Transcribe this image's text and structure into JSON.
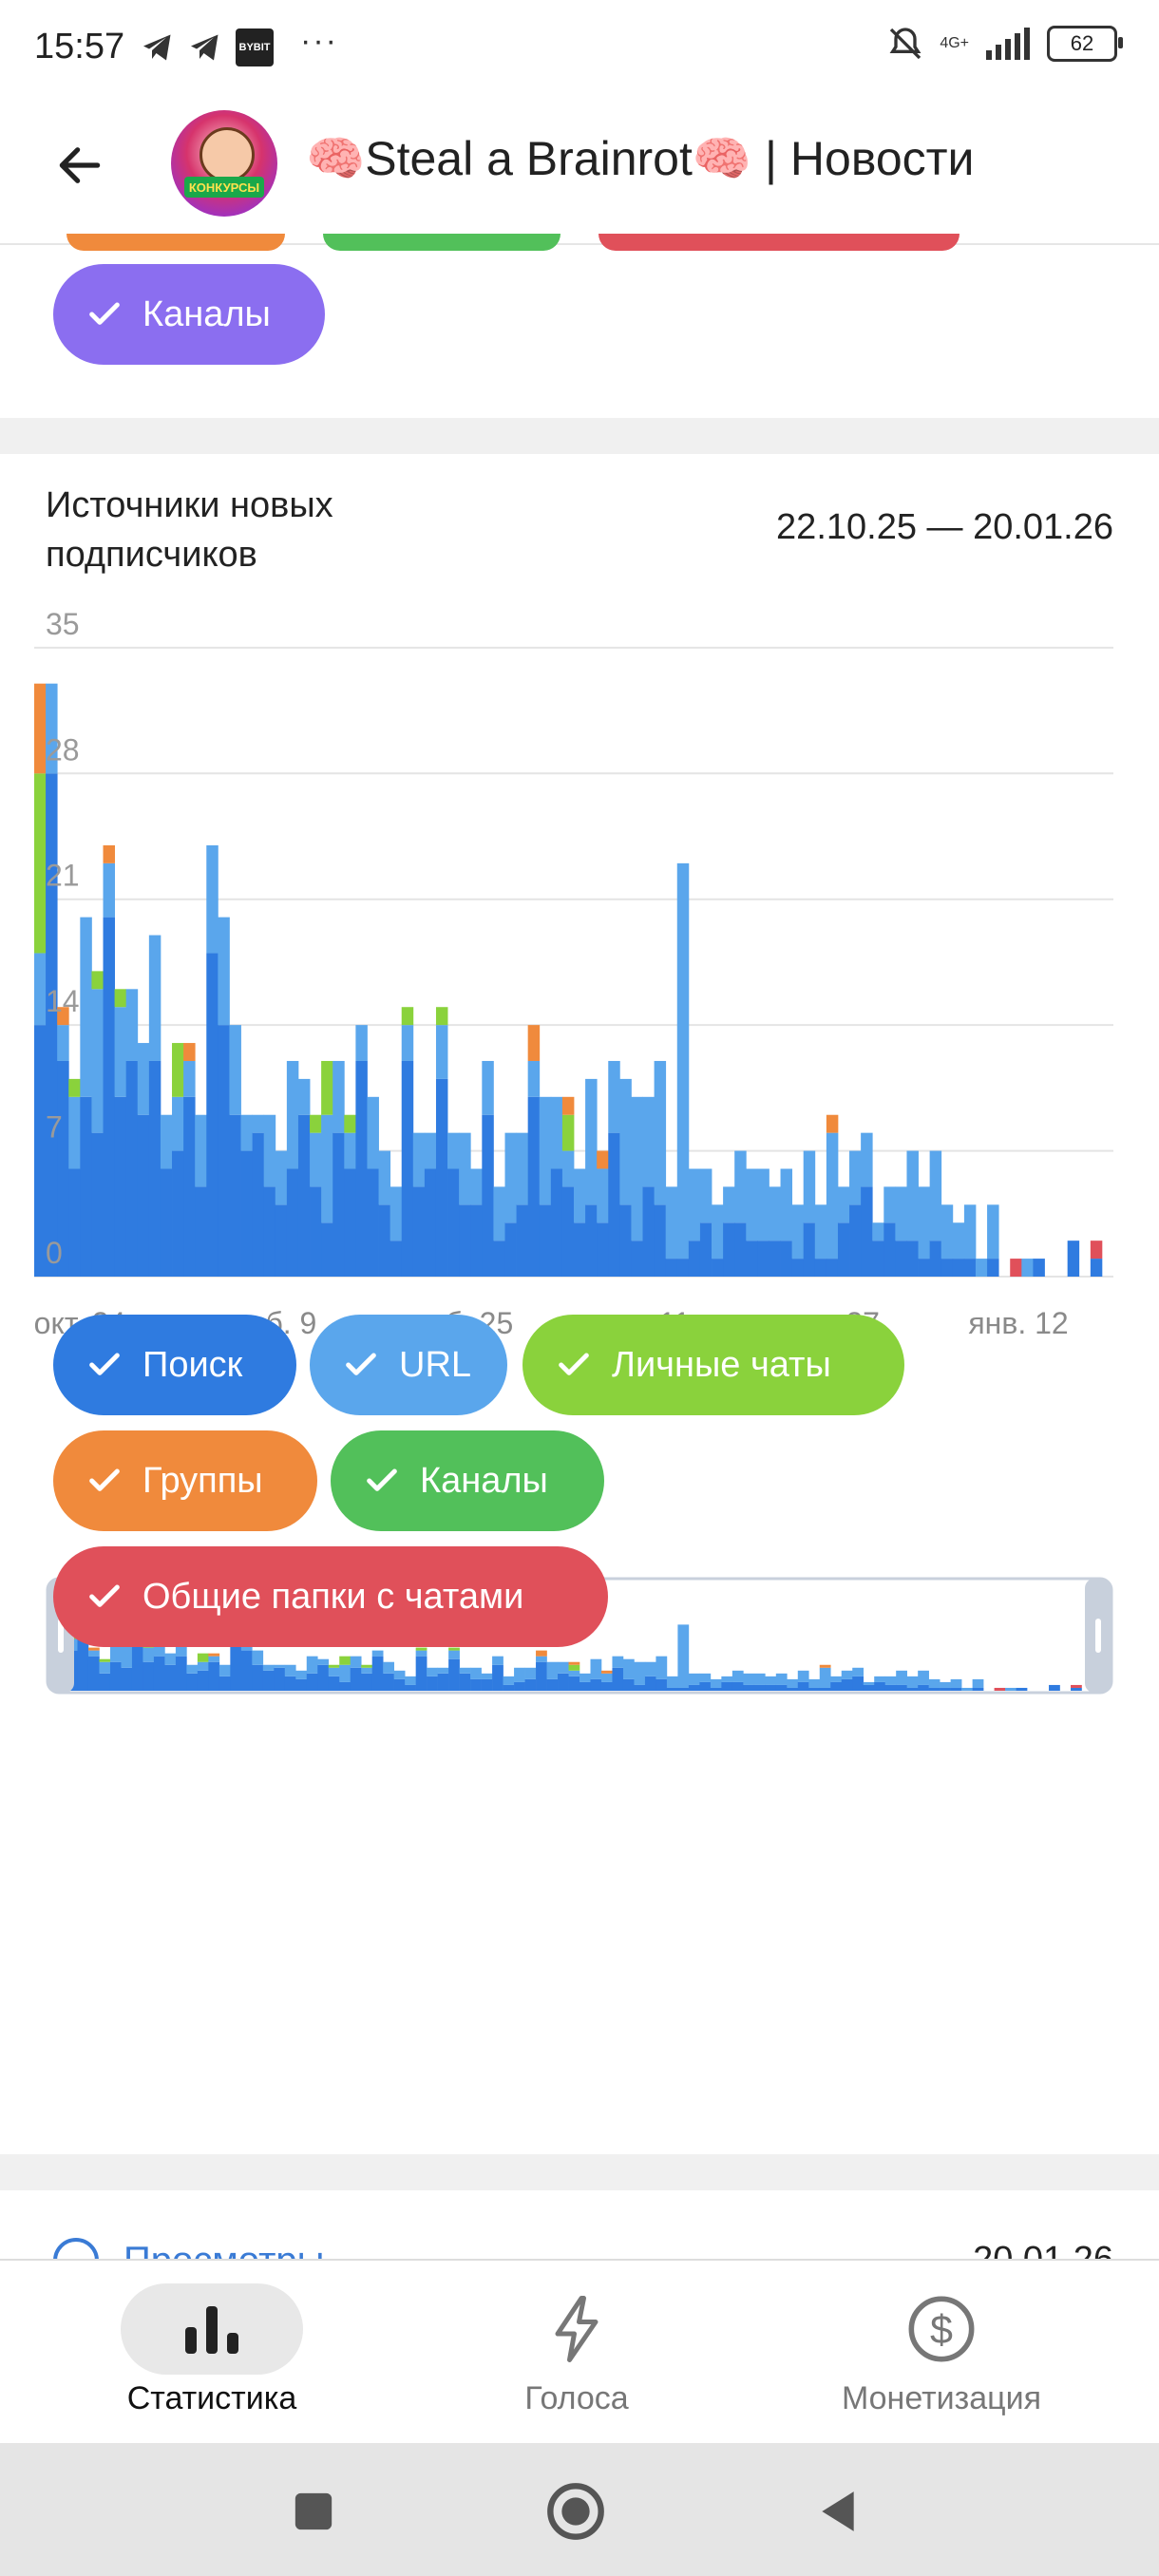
{
  "status_bar": {
    "time": "15:57",
    "network": "4G+",
    "battery": "62"
  },
  "header": {
    "title": "🧠Steal a Brainrot🧠 | Новости",
    "avatar_badge": "КОНКУРСЫ"
  },
  "top_filters": {
    "chips": [
      {
        "label": "Каналы",
        "color": "#8b6ef0"
      }
    ]
  },
  "chart_section": {
    "title": "Источники новых подписчиков",
    "range": "22.10.25 — 20.01.26"
  },
  "chart_data": {
    "type": "bar",
    "stacked": true,
    "title": "Источники новых подписчиков",
    "y_ticks": [
      "0",
      "7",
      "14",
      "21",
      "28",
      "35"
    ],
    "ylim": [
      0,
      37
    ],
    "x_ticks": [
      "окт. 24",
      "нояб. 9",
      "нояб. 25",
      "дек. 11",
      "дек. 27",
      "янв. 12"
    ],
    "grid": true,
    "series": [
      {
        "name": "Поиск",
        "color": "#2f7be0",
        "values": [
          14,
          28,
          12,
          6,
          10,
          8,
          20,
          10,
          12,
          9,
          12,
          6,
          7,
          10,
          5,
          18,
          14,
          9,
          7,
          8,
          5,
          4,
          6,
          9,
          5,
          3,
          8,
          6,
          12,
          6,
          4,
          2,
          12,
          5,
          6,
          11,
          6,
          4,
          4,
          9,
          2,
          3,
          4,
          10,
          4,
          6,
          5,
          3,
          4,
          3,
          8,
          4,
          2,
          5,
          4,
          1,
          1,
          2,
          3,
          1,
          3,
          3,
          2,
          2,
          2,
          2,
          1,
          3,
          1,
          1,
          3,
          4,
          5,
          2,
          3,
          2,
          2,
          1,
          2,
          1,
          1,
          1,
          0,
          1,
          0,
          0,
          0,
          1,
          0,
          0,
          2,
          0,
          1,
          0
        ]
      },
      {
        "name": "URL",
        "color": "#5aa6ec",
        "values": [
          4,
          5,
          2,
          4,
          10,
          8,
          3,
          5,
          4,
          4,
          7,
          3,
          3,
          2,
          4,
          6,
          6,
          5,
          2,
          1,
          4,
          3,
          6,
          2,
          3,
          6,
          4,
          2,
          2,
          4,
          3,
          3,
          2,
          3,
          2,
          3,
          2,
          4,
          2,
          3,
          3,
          5,
          4,
          2,
          6,
          4,
          2,
          3,
          7,
          3,
          4,
          7,
          8,
          5,
          8,
          4,
          22,
          4,
          3,
          3,
          2,
          4,
          4,
          4,
          3,
          4,
          3,
          4,
          3,
          7,
          2,
          3,
          3,
          1,
          2,
          3,
          5,
          4,
          5,
          3,
          2,
          3,
          1,
          3,
          0,
          0,
          1,
          0,
          0,
          0,
          0,
          0,
          0,
          0
        ]
      },
      {
        "name": "Личные чаты",
        "color": "#8ad23c",
        "values": [
          10,
          0,
          0,
          1,
          0,
          1,
          0,
          1,
          0,
          0,
          0,
          0,
          3,
          0,
          0,
          0,
          0,
          0,
          0,
          0,
          0,
          0,
          0,
          0,
          1,
          3,
          0,
          1,
          0,
          0,
          0,
          0,
          1,
          0,
          0,
          1,
          0,
          0,
          0,
          0,
          0,
          0,
          0,
          0,
          0,
          0,
          2,
          0,
          0,
          0,
          0,
          0,
          0,
          0,
          0,
          0,
          0,
          0,
          0,
          0,
          0,
          0,
          0,
          0,
          0,
          0,
          0,
          0,
          0,
          0,
          0,
          0,
          0,
          0,
          0,
          0,
          0,
          0,
          0,
          0,
          0,
          0,
          0,
          0,
          0,
          0,
          0,
          0,
          0,
          0,
          0,
          0,
          0,
          0
        ]
      },
      {
        "name": "Группы",
        "color": "#f08a3c",
        "values": [
          5,
          0,
          1,
          0,
          0,
          0,
          1,
          0,
          0,
          0,
          0,
          0,
          0,
          1,
          0,
          0,
          0,
          0,
          0,
          0,
          0,
          0,
          0,
          0,
          0,
          0,
          0,
          0,
          0,
          0,
          0,
          0,
          0,
          0,
          0,
          0,
          0,
          0,
          0,
          0,
          0,
          0,
          0,
          2,
          0,
          0,
          1,
          0,
          0,
          1,
          0,
          0,
          0,
          0,
          0,
          0,
          0,
          0,
          0,
          0,
          0,
          0,
          0,
          0,
          0,
          0,
          0,
          0,
          0,
          1,
          0,
          0,
          0,
          0,
          0,
          0,
          0,
          0,
          0,
          0,
          0,
          0,
          0,
          0,
          0,
          0,
          0,
          0,
          0,
          0,
          0,
          0,
          0,
          0
        ]
      },
      {
        "name": "Каналы",
        "color": "#52c05a",
        "values": [
          0,
          0,
          0,
          0,
          0,
          0,
          0,
          0,
          0,
          0,
          0,
          0,
          0,
          0,
          0,
          0,
          0,
          0,
          0,
          0,
          0,
          0,
          0,
          0,
          0,
          0,
          0,
          0,
          0,
          0,
          0,
          0,
          0,
          0,
          0,
          0,
          0,
          0,
          0,
          0,
          0,
          0,
          0,
          0,
          0,
          0,
          0,
          0,
          0,
          0,
          0,
          0,
          0,
          0,
          0,
          0,
          0,
          0,
          0,
          0,
          0,
          0,
          0,
          0,
          0,
          0,
          0,
          0,
          0,
          0,
          0,
          0,
          0,
          0,
          0,
          0,
          0,
          0,
          0,
          0,
          0,
          0,
          0,
          0,
          0,
          0,
          0,
          0,
          0,
          0,
          0,
          0,
          0,
          0
        ]
      },
      {
        "name": "Общие папки с чатами",
        "color": "#e0505a",
        "values": [
          0,
          0,
          0,
          0,
          0,
          0,
          0,
          0,
          0,
          0,
          0,
          0,
          0,
          0,
          0,
          0,
          0,
          0,
          0,
          0,
          0,
          0,
          0,
          0,
          0,
          0,
          0,
          0,
          0,
          0,
          0,
          0,
          0,
          0,
          0,
          0,
          0,
          0,
          0,
          0,
          0,
          0,
          0,
          0,
          0,
          0,
          0,
          0,
          0,
          0,
          0,
          0,
          0,
          0,
          0,
          0,
          0,
          0,
          0,
          0,
          0,
          0,
          0,
          0,
          0,
          0,
          0,
          0,
          0,
          0,
          0,
          0,
          0,
          0,
          0,
          0,
          0,
          0,
          0,
          0,
          0,
          0,
          0,
          0,
          0,
          1,
          0,
          0,
          0,
          0,
          0,
          0,
          1,
          0
        ]
      }
    ]
  },
  "legend_chips": [
    {
      "label": "Поиск",
      "color": "#2f7be0"
    },
    {
      "label": "URL",
      "color": "#5aa6ec"
    },
    {
      "label": "Личные чаты",
      "color": "#8ad23c"
    },
    {
      "label": "Группы",
      "color": "#f08a3c"
    },
    {
      "label": "Каналы",
      "color": "#52c05a"
    },
    {
      "label": "Общие папки с чатами",
      "color": "#e0505a"
    }
  ],
  "next_section": {
    "title": "Просмотры",
    "date": "20.01.26"
  },
  "bottom_nav": {
    "items": [
      {
        "label": "Статистика",
        "icon": "bar-chart-icon",
        "active": true
      },
      {
        "label": "Голоса",
        "icon": "lightning-icon",
        "active": false
      },
      {
        "label": "Монетизация",
        "icon": "dollar-icon",
        "active": false
      }
    ]
  },
  "system_nav": {
    "buttons": [
      "recents-icon",
      "home-icon",
      "back-icon"
    ]
  }
}
